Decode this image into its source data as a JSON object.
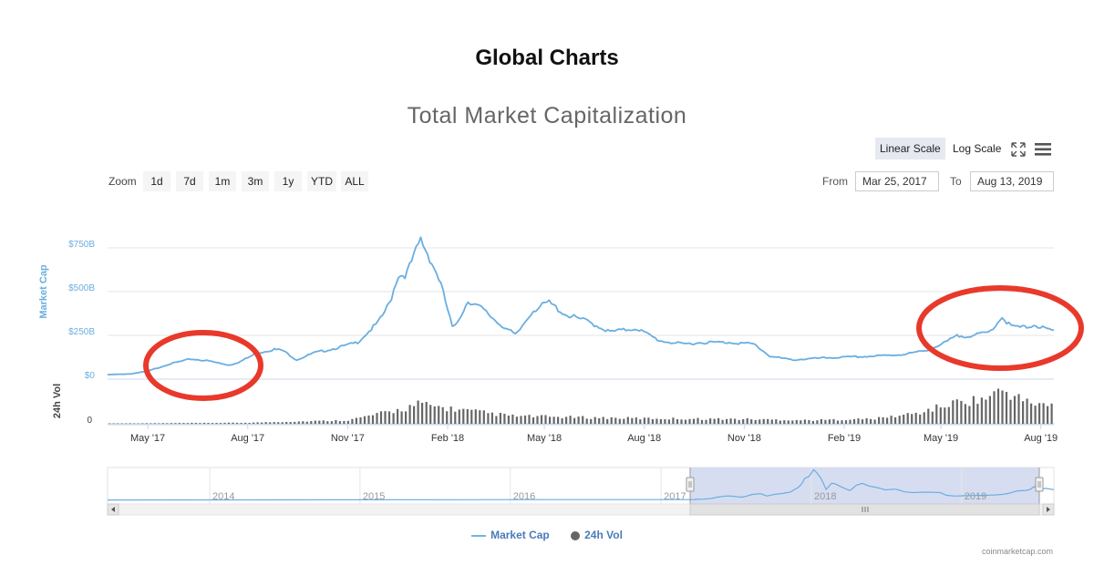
{
  "page": {
    "title": "Global Charts"
  },
  "chart": {
    "title": "Total Market Capitalization",
    "scale_buttons": {
      "linear": "Linear Scale",
      "log": "Log Scale",
      "active": "linear"
    },
    "zoom": {
      "label": "Zoom",
      "buttons": [
        "1d",
        "7d",
        "1m",
        "3m",
        "1y",
        "YTD",
        "ALL"
      ]
    },
    "range": {
      "from_label": "From",
      "from_value": "Mar 25, 2017",
      "to_label": "To",
      "to_value": "Aug 13, 2019"
    },
    "legend": {
      "market_cap": "Market Cap",
      "volume": "24h Vol"
    },
    "credits": "coinmarketcap.com",
    "colors": {
      "market_cap": "#6aaee0",
      "volume": "#666666",
      "annotation": "#e8392b",
      "navigator_fill": "#d2d9ee"
    }
  },
  "chart_data": {
    "type": "line",
    "x_axis": {
      "ticks": [
        "May '17",
        "Aug '17",
        "Nov '17",
        "Feb '18",
        "May '18",
        "Aug '18",
        "Nov '18",
        "Feb '19",
        "May '19",
        "Aug '19"
      ]
    },
    "y_axis": {
      "label": "Market Cap",
      "ticks": [
        "$0",
        "$250B",
        "$500B",
        "$750B"
      ],
      "ylim": [
        0,
        750
      ]
    },
    "volume_axis": {
      "label": "24h Vol",
      "ticks": [
        "0"
      ]
    },
    "navigator": {
      "ticks": [
        "2014",
        "2015",
        "2016",
        "2017",
        "2018",
        "2019"
      ]
    },
    "series": [
      {
        "name": "Market Cap",
        "unit": "B USD",
        "x": [
          "2017-03-25",
          "2017-04-15",
          "2017-05-01",
          "2017-05-20",
          "2017-06-10",
          "2017-06-25",
          "2017-07-15",
          "2017-07-25",
          "2017-08-10",
          "2017-08-25",
          "2017-09-02",
          "2017-09-15",
          "2017-10-01",
          "2017-10-20",
          "2017-11-10",
          "2017-11-30",
          "2017-12-10",
          "2017-12-17",
          "2017-12-25",
          "2018-01-01",
          "2018-01-07",
          "2018-01-15",
          "2018-01-25",
          "2018-02-06",
          "2018-02-20",
          "2018-03-05",
          "2018-03-20",
          "2018-04-05",
          "2018-04-20",
          "2018-05-05",
          "2018-05-20",
          "2018-06-10",
          "2018-06-30",
          "2018-07-25",
          "2018-08-15",
          "2018-09-05",
          "2018-09-25",
          "2018-10-20",
          "2018-11-10",
          "2018-11-25",
          "2018-12-15",
          "2019-01-10",
          "2019-02-01",
          "2019-02-25",
          "2019-03-25",
          "2019-04-15",
          "2019-05-01",
          "2019-05-15",
          "2019-06-01",
          "2019-06-15",
          "2019-06-26",
          "2019-07-05",
          "2019-07-17",
          "2019-07-25",
          "2019-08-06",
          "2019-08-13"
        ],
        "values": [
          25,
          30,
          45,
          85,
          115,
          105,
          80,
          100,
          150,
          170,
          165,
          110,
          150,
          175,
          210,
          330,
          440,
          590,
          600,
          700,
          800,
          700,
          560,
          280,
          450,
          400,
          320,
          250,
          390,
          440,
          370,
          330,
          270,
          290,
          220,
          200,
          210,
          210,
          200,
          130,
          110,
          120,
          125,
          130,
          140,
          160,
          195,
          245,
          250,
          270,
          355,
          300,
          295,
          310,
          285,
          275
        ]
      },
      {
        "name": "24h Vol",
        "unit": "B USD",
        "x": [
          "2017-03-25",
          "2017-08-01",
          "2017-11-01",
          "2017-12-20",
          "2018-01-05",
          "2018-02-10",
          "2018-04-01",
          "2018-06-01",
          "2018-08-01",
          "2018-11-01",
          "2019-01-01",
          "2019-03-01",
          "2019-04-10",
          "2019-05-15",
          "2019-06-10",
          "2019-06-27",
          "2019-07-20",
          "2019-08-13"
        ],
        "values": [
          1,
          3,
          10,
          40,
          55,
          40,
          22,
          18,
          15,
          13,
          10,
          14,
          30,
          60,
          70,
          95,
          60,
          50
        ]
      }
    ]
  }
}
